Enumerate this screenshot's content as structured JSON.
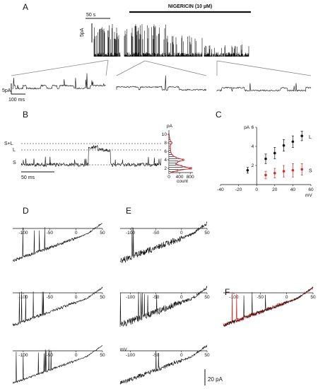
{
  "panels": {
    "A": "A",
    "B": "B",
    "C": "C",
    "D": "D",
    "E": "E",
    "F": "F"
  },
  "panel_a": {
    "drug_label": "NIGERICIN (10 µM)",
    "time_scale": "50 s",
    "current_scale": "5pA",
    "zoom_current_scale": "5pA",
    "zoom_time_scale": "100 ms"
  },
  "panel_b": {
    "levels": [
      "S+L",
      "L",
      "S"
    ],
    "time_scale": "50 ms",
    "hist_ylabel": "pA",
    "hist_xlabel": "count",
    "hist_yticks": [
      "2",
      "4",
      "6",
      "8",
      "10"
    ],
    "hist_xticks": [
      "0",
      "400",
      "800"
    ]
  },
  "panel_d": {
    "x_ticks": [
      "-100",
      "-50",
      "0",
      "50"
    ]
  },
  "panel_e": {
    "x_ticks": [
      "-100",
      "-50",
      "0",
      "50"
    ],
    "x_unit": "mV"
  },
  "panel_f": {
    "x_ticks": [
      "-100",
      "-50",
      "0",
      "50"
    ]
  },
  "scale_bar": "20 pA",
  "colors": {
    "trace": "#111111",
    "red": "#d42a2a",
    "grey": "#999999"
  },
  "chart_data": [
    {
      "type": "scatter",
      "panel": "C",
      "ylabel": "pA",
      "xlabel": "mV",
      "xlim": [
        -40,
        60
      ],
      "ylim": [
        0,
        6
      ],
      "x_ticks": [
        -40,
        -20,
        0,
        20,
        40,
        60
      ],
      "y_ticks": [
        2,
        4,
        6
      ],
      "series": [
        {
          "name": "L",
          "color": "#111111",
          "x": [
            -10,
            10,
            20,
            30,
            40,
            50
          ],
          "y": [
            1.5,
            2.7,
            3.3,
            4.1,
            4.5,
            5.1
          ],
          "err": [
            0.3,
            0.5,
            0.6,
            0.6,
            0.6,
            0.5
          ]
        },
        {
          "name": "S",
          "color": "#d42a2a",
          "x": [
            10,
            20,
            30,
            40,
            50
          ],
          "y": [
            1.0,
            1.2,
            1.4,
            1.5,
            1.6
          ],
          "err": [
            0.4,
            0.5,
            0.6,
            0.7,
            0.6
          ]
        }
      ]
    },
    {
      "type": "bar",
      "panel": "B-histogram",
      "ylabel": "pA",
      "xlabel": "count",
      "categories": [
        1,
        1.5,
        2,
        2.5,
        3,
        3.5,
        4,
        4.5,
        5,
        5.5,
        6,
        6.5,
        7,
        7.5,
        8,
        8.5,
        9,
        9.5,
        10
      ],
      "values": [
        60,
        340,
        860,
        500,
        260,
        330,
        560,
        280,
        150,
        90,
        70,
        60,
        50,
        60,
        120,
        60,
        30,
        20,
        10
      ]
    }
  ]
}
